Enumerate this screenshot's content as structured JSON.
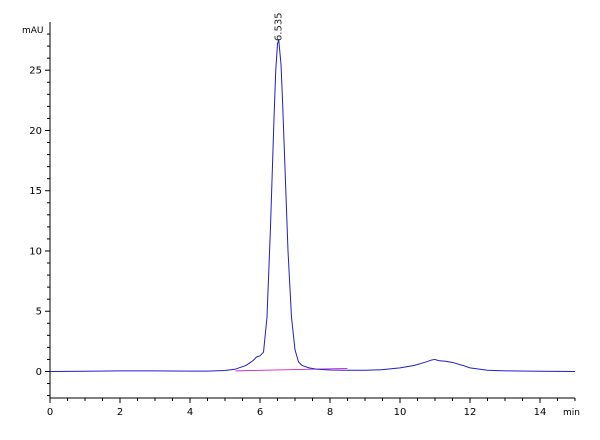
{
  "chart_data": {
    "type": "line",
    "title": "",
    "xlabel": "min",
    "ylabel": "mAU",
    "xlim": [
      0,
      15
    ],
    "ylim": [
      -2.2,
      29
    ],
    "grid": false,
    "legend": "none",
    "x_ticks": [
      0,
      2,
      4,
      6,
      8,
      10,
      12,
      14
    ],
    "x_tick_labels": [
      "0",
      "2",
      "4",
      "6",
      "8",
      "10",
      "12",
      "14"
    ],
    "y_ticks": [
      0,
      5,
      10,
      15,
      20,
      25
    ],
    "y_tick_labels": [
      "0",
      "5",
      "10",
      "15",
      "20",
      "25"
    ],
    "colors": {
      "signal": "#1f1fcc",
      "baseline": "#cc22cc"
    },
    "series": [
      {
        "x": [
          0,
          1,
          2,
          3,
          4,
          4.5,
          5,
          5.3,
          5.6,
          5.8,
          5.9,
          6.0,
          6.1,
          6.2,
          6.3,
          6.4,
          6.45,
          6.5,
          6.535,
          6.6,
          6.65,
          6.7,
          6.8,
          6.9,
          7.0,
          7.1,
          7.2,
          7.4,
          7.6,
          8.0,
          8.5,
          9.0,
          9.5,
          10.0,
          10.4,
          10.7,
          10.9,
          11.0,
          11.1,
          11.3,
          11.5,
          11.8,
          12.0,
          12.5,
          13.0,
          14.0,
          15.0
        ],
        "y": [
          0.0,
          0.02,
          0.05,
          0.05,
          0.03,
          0.03,
          0.08,
          0.2,
          0.5,
          0.9,
          1.2,
          1.3,
          1.6,
          4.5,
          12.0,
          21.0,
          25.0,
          27.2,
          27.5,
          25.5,
          22.0,
          18.0,
          10.0,
          4.5,
          1.8,
          0.8,
          0.5,
          0.3,
          0.2,
          0.12,
          0.1,
          0.1,
          0.15,
          0.3,
          0.5,
          0.75,
          0.95,
          1.0,
          0.9,
          0.85,
          0.75,
          0.5,
          0.3,
          0.1,
          0.05,
          0.02,
          0.0
        ]
      },
      {
        "x": [
          5.3,
          8.5
        ],
        "y": [
          0.05,
          0.25
        ]
      }
    ],
    "annotations": [
      {
        "text": "6.535",
        "x": 6.535,
        "y": 27.5
      }
    ]
  }
}
